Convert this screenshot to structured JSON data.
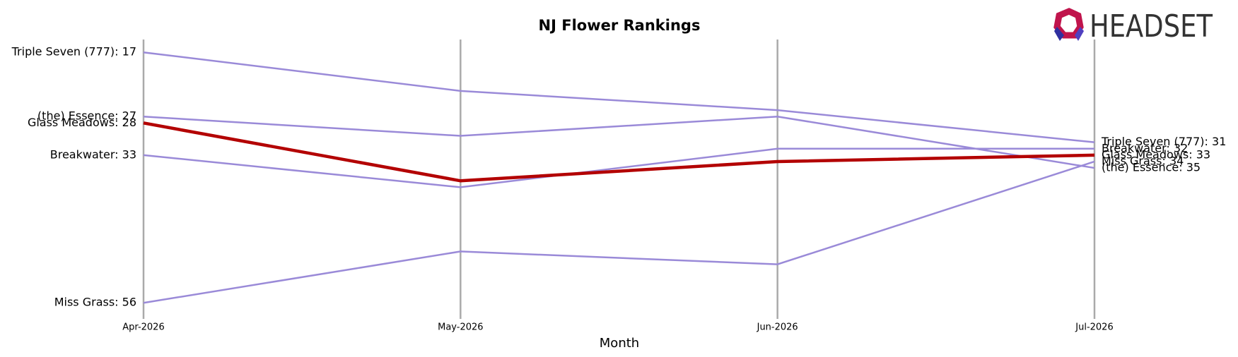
{
  "logo": {
    "text": "HEADSET"
  },
  "chart_data": {
    "type": "line",
    "title": "NJ Flower Rankings",
    "x_label": "Month",
    "categories": [
      "Apr-2026",
      "May-2026",
      "Jun-2026",
      "Jul-2026"
    ],
    "ylim": [
      15,
      58.5
    ],
    "y_inverted": true,
    "x_grid": true,
    "series": [
      {
        "name": "Triple Seven (777)",
        "color": "#9a8ad8",
        "values": [
          17,
          23,
          26,
          31
        ],
        "value_labels": [
          "Triple Seven (777): 17",
          null,
          null,
          "Triple Seven (777): 31"
        ]
      },
      {
        "name": "(the) Essence",
        "color": "#9a8ad8",
        "values": [
          27,
          30,
          27,
          35
        ],
        "value_labels": [
          "(the) Essence: 27",
          null,
          null,
          "(the) Essence: 35"
        ]
      },
      {
        "name": "Breakwater",
        "color": "#9a8ad8",
        "values": [
          33,
          38,
          32,
          32
        ],
        "value_labels": [
          "Breakwater: 33",
          null,
          null,
          "Breakwater: 32"
        ]
      },
      {
        "name": "Miss Grass",
        "color": "#9a8ad8",
        "values": [
          56,
          48,
          50,
          34
        ],
        "value_labels": [
          "Miss Grass: 56",
          null,
          null,
          "Miss Grass: 34"
        ]
      },
      {
        "name": "Glass Meadows",
        "color": "#b30000",
        "highlight": true,
        "values": [
          28,
          37,
          34,
          33
        ],
        "value_labels": [
          "Glass Meadows: 28",
          null,
          null,
          "Glass Meadows: 33"
        ]
      }
    ]
  }
}
